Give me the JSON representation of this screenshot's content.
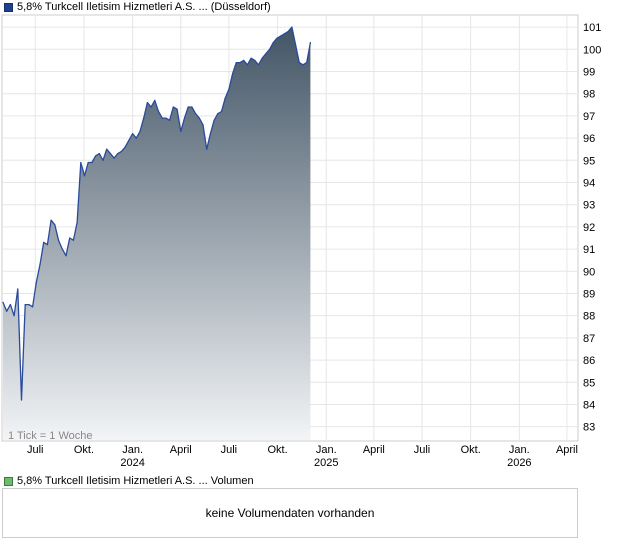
{
  "price_legend": {
    "label": "5,8% Turkcell Iletisim Hizmetleri A.S. ... (Düsseldorf)",
    "color": "#1f3f8f"
  },
  "volume_legend": {
    "label": "5,8% Turkcell Iletisim Hizmetleri A.S. ... Volumen",
    "color": "#6dbb6d"
  },
  "tick_note": "1 Tick = 1 Woche",
  "volume_panel": {
    "message": "keine Volumendaten vorhanden"
  },
  "chart_data": {
    "type": "area",
    "title": "",
    "xlabel": "",
    "ylabel": "",
    "y_axis_position": "right",
    "grid": true,
    "ylim": [
      82.4,
      101.5
    ],
    "xlim": [
      "2023-05-01",
      "2026-04-20"
    ],
    "y_ticks": [
      83,
      84,
      85,
      86,
      87,
      88,
      89,
      90,
      91,
      92,
      93,
      94,
      95,
      96,
      97,
      98,
      99,
      100,
      101
    ],
    "x_ticks": [
      {
        "date": "2023-07-01",
        "label": "Juli",
        "year": ""
      },
      {
        "date": "2023-10-01",
        "label": "Okt.",
        "year": ""
      },
      {
        "date": "2024-01-01",
        "label": "Jan.",
        "year": "2024"
      },
      {
        "date": "2024-04-01",
        "label": "April",
        "year": ""
      },
      {
        "date": "2024-07-01",
        "label": "Juli",
        "year": ""
      },
      {
        "date": "2024-10-01",
        "label": "Okt.",
        "year": ""
      },
      {
        "date": "2025-01-01",
        "label": "Jan.",
        "year": "2025"
      },
      {
        "date": "2025-04-01",
        "label": "April",
        "year": ""
      },
      {
        "date": "2025-07-01",
        "label": "Juli",
        "year": ""
      },
      {
        "date": "2025-10-01",
        "label": "Okt.",
        "year": ""
      },
      {
        "date": "2026-01-01",
        "label": "Jan.",
        "year": "2026"
      },
      {
        "date": "2026-04-01",
        "label": "April",
        "year": ""
      }
    ],
    "series": [
      {
        "line_color": "#2a4a9a",
        "fill_top_color": "#435566",
        "fill_bottom_color": "#f2f4f6",
        "points": [
          [
            "2023-05-01",
            88.6
          ],
          [
            "2023-05-08",
            88.2
          ],
          [
            "2023-05-15",
            88.5
          ],
          [
            "2023-05-22",
            88.0
          ],
          [
            "2023-05-29",
            89.2
          ],
          [
            "2023-06-05",
            84.2
          ],
          [
            "2023-06-12",
            88.5
          ],
          [
            "2023-06-19",
            88.5
          ],
          [
            "2023-06-26",
            88.4
          ],
          [
            "2023-07-03",
            89.5
          ],
          [
            "2023-07-10",
            90.3
          ],
          [
            "2023-07-17",
            91.3
          ],
          [
            "2023-07-24",
            91.2
          ],
          [
            "2023-07-31",
            92.3
          ],
          [
            "2023-08-07",
            92.1
          ],
          [
            "2023-08-14",
            91.4
          ],
          [
            "2023-08-21",
            91.0
          ],
          [
            "2023-08-28",
            90.7
          ],
          [
            "2023-09-04",
            91.5
          ],
          [
            "2023-09-11",
            91.4
          ],
          [
            "2023-09-18",
            92.2
          ],
          [
            "2023-09-25",
            94.9
          ],
          [
            "2023-10-02",
            94.3
          ],
          [
            "2023-10-09",
            94.9
          ],
          [
            "2023-10-16",
            94.9
          ],
          [
            "2023-10-23",
            95.2
          ],
          [
            "2023-10-30",
            95.3
          ],
          [
            "2023-11-06",
            95.0
          ],
          [
            "2023-11-13",
            95.5
          ],
          [
            "2023-11-20",
            95.3
          ],
          [
            "2023-11-27",
            95.1
          ],
          [
            "2023-12-04",
            95.3
          ],
          [
            "2023-12-11",
            95.4
          ],
          [
            "2023-12-18",
            95.6
          ],
          [
            "2023-12-25",
            95.9
          ],
          [
            "2024-01-01",
            96.2
          ],
          [
            "2024-01-08",
            96.0
          ],
          [
            "2024-01-15",
            96.3
          ],
          [
            "2024-01-22",
            96.9
          ],
          [
            "2024-01-29",
            97.6
          ],
          [
            "2024-02-05",
            97.4
          ],
          [
            "2024-02-12",
            97.7
          ],
          [
            "2024-02-19",
            97.2
          ],
          [
            "2024-02-26",
            96.9
          ],
          [
            "2024-03-04",
            96.9
          ],
          [
            "2024-03-11",
            96.8
          ],
          [
            "2024-03-18",
            97.4
          ],
          [
            "2024-03-25",
            97.3
          ],
          [
            "2024-04-01",
            96.3
          ],
          [
            "2024-04-08",
            96.9
          ],
          [
            "2024-04-15",
            97.4
          ],
          [
            "2024-04-22",
            97.4
          ],
          [
            "2024-04-29",
            97.1
          ],
          [
            "2024-05-06",
            96.9
          ],
          [
            "2024-05-13",
            96.6
          ],
          [
            "2024-05-20",
            95.5
          ],
          [
            "2024-05-27",
            96.2
          ],
          [
            "2024-06-03",
            96.8
          ],
          [
            "2024-06-10",
            97.1
          ],
          [
            "2024-06-17",
            97.2
          ],
          [
            "2024-06-24",
            97.8
          ],
          [
            "2024-07-01",
            98.2
          ],
          [
            "2024-07-08",
            98.9
          ],
          [
            "2024-07-15",
            99.4
          ],
          [
            "2024-07-22",
            99.4
          ],
          [
            "2024-07-29",
            99.5
          ],
          [
            "2024-08-05",
            99.3
          ],
          [
            "2024-08-12",
            99.6
          ],
          [
            "2024-08-19",
            99.5
          ],
          [
            "2024-08-26",
            99.3
          ],
          [
            "2024-09-02",
            99.6
          ],
          [
            "2024-09-09",
            99.8
          ],
          [
            "2024-09-16",
            100.0
          ],
          [
            "2024-09-23",
            100.3
          ],
          [
            "2024-09-30",
            100.5
          ],
          [
            "2024-10-07",
            100.6
          ],
          [
            "2024-10-14",
            100.7
          ],
          [
            "2024-10-21",
            100.8
          ],
          [
            "2024-10-28",
            101.0
          ],
          [
            "2024-11-04",
            100.2
          ],
          [
            "2024-11-11",
            99.4
          ],
          [
            "2024-11-18",
            99.3
          ],
          [
            "2024-11-25",
            99.4
          ],
          [
            "2024-12-02",
            100.3
          ]
        ]
      }
    ]
  }
}
